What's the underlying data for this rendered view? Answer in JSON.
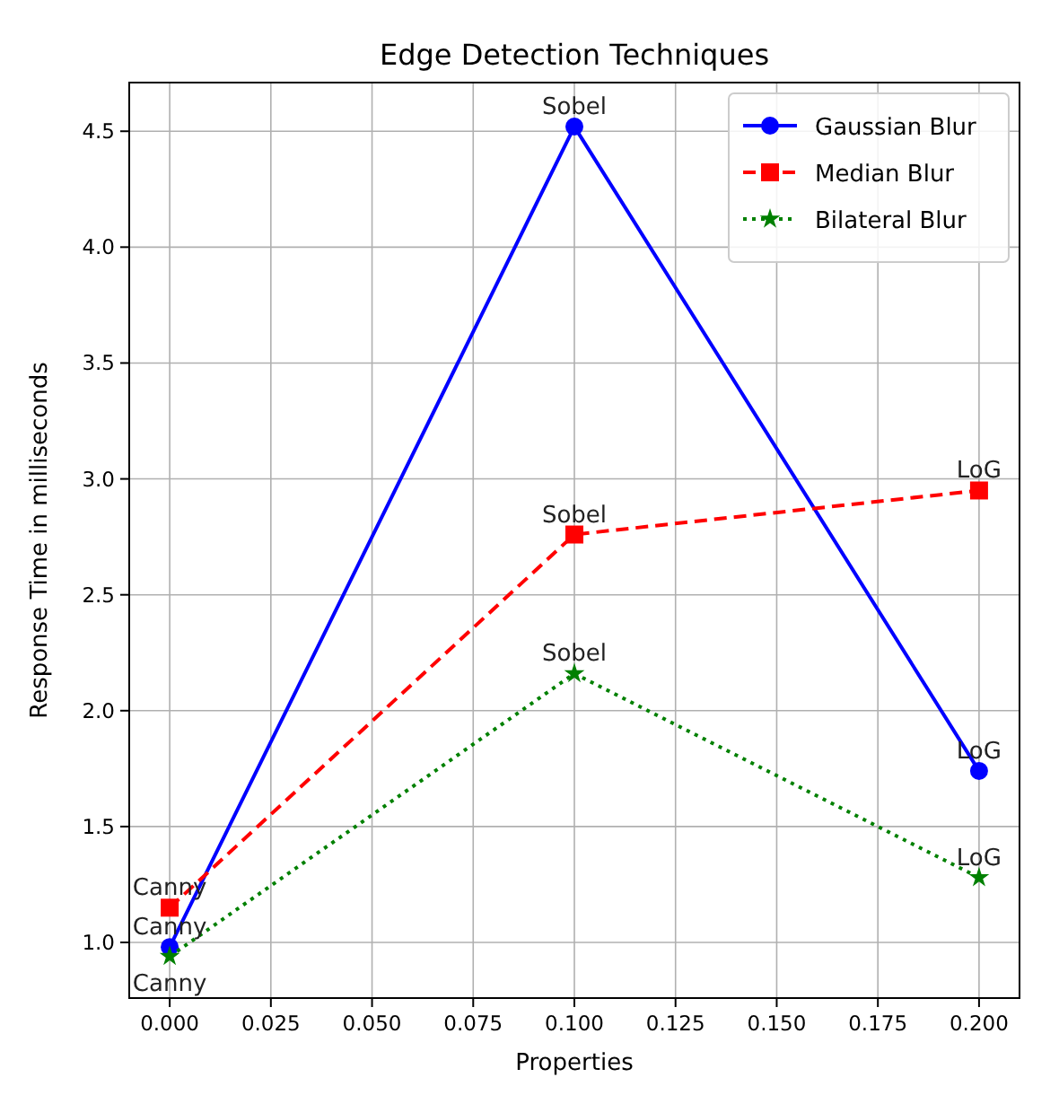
{
  "chart_data": {
    "type": "line",
    "title": "Edge Detection Techniques",
    "xlabel": "Properties",
    "ylabel": "Response Time in milliseconds",
    "x": [
      0.0,
      0.1,
      0.2
    ],
    "series": [
      {
        "name": "Gaussian Blur",
        "color": "#0000ff",
        "values": [
          0.98,
          4.52,
          1.74
        ],
        "marker": "circle",
        "line_style": "solid"
      },
      {
        "name": "Median Blur",
        "color": "#ff0000",
        "values": [
          1.15,
          2.76,
          2.95
        ],
        "marker": "square",
        "line_style": "dashed"
      },
      {
        "name": "Bilateral Blur",
        "color": "#008000",
        "values": [
          0.94,
          2.16,
          1.28
        ],
        "marker": "star",
        "line_style": "dotted"
      }
    ],
    "annotations": [
      {
        "text": "Canny",
        "x": 0.0,
        "y": 0.98
      },
      {
        "text": "Sobel",
        "x": 0.1,
        "y": 4.52
      },
      {
        "text": "LoG",
        "x": 0.2,
        "y": 1.74
      },
      {
        "text": "Canny",
        "x": 0.0,
        "y": 1.15
      },
      {
        "text": "Sobel",
        "x": 0.1,
        "y": 2.76
      },
      {
        "text": "LoG",
        "x": 0.2,
        "y": 2.95
      },
      {
        "text": "Canny",
        "x": 0.0,
        "y": 0.94
      },
      {
        "text": "Sobel",
        "x": 0.1,
        "y": 2.16
      },
      {
        "text": "LoG",
        "x": 0.2,
        "y": 1.28
      }
    ],
    "xlim": [
      -0.01,
      0.21
    ],
    "ylim": [
      0.76,
      4.71
    ],
    "xticks": [
      {
        "value": 0,
        "label": "0.000"
      },
      {
        "value": 0.025,
        "label": "0.025"
      },
      {
        "value": 0.05,
        "label": "0.050"
      },
      {
        "value": 0.075,
        "label": "0.075"
      },
      {
        "value": 0.1,
        "label": "0.100"
      },
      {
        "value": 0.125,
        "label": "0.125"
      },
      {
        "value": 0.15,
        "label": "0.150"
      },
      {
        "value": 0.175,
        "label": "0.175"
      },
      {
        "value": 0.2,
        "label": "0.200"
      }
    ],
    "yticks": [
      {
        "value": 1,
        "label": "1.0"
      },
      {
        "value": 1.5,
        "label": "1.5"
      },
      {
        "value": 2,
        "label": "2.0"
      },
      {
        "value": 2.5,
        "label": "2.5"
      },
      {
        "value": 3,
        "label": "3.0"
      },
      {
        "value": 3.5,
        "label": "3.5"
      },
      {
        "value": 4,
        "label": "4.0"
      },
      {
        "value": 4.5,
        "label": "4.5"
      }
    ],
    "grid": true,
    "legend": "top right"
  }
}
